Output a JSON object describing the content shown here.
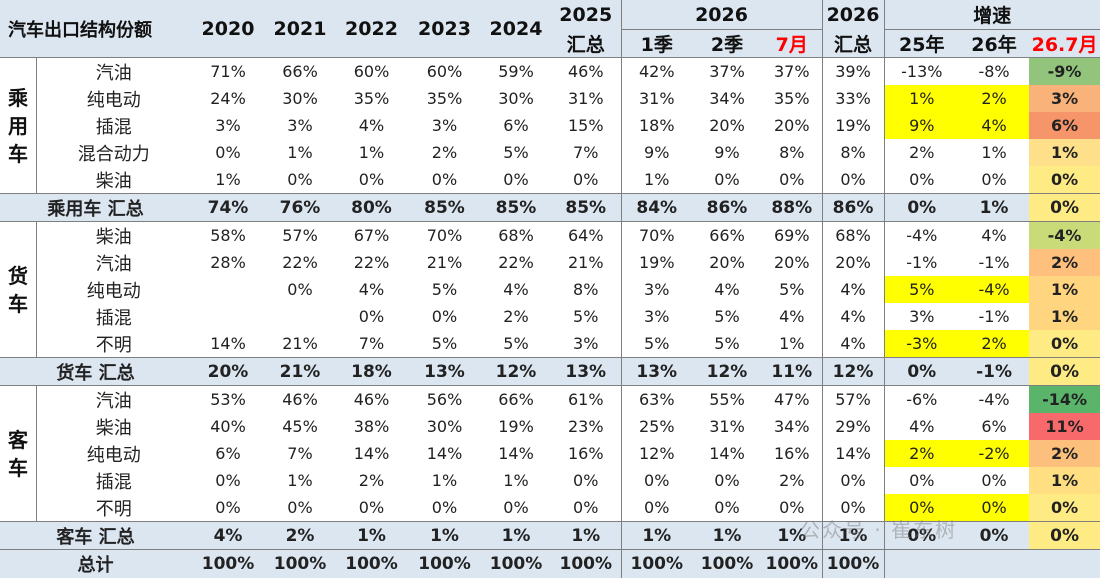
{
  "header": {
    "title": "汽车出口结构份额",
    "years": [
      "2020",
      "2021",
      "2022",
      "2023",
      "2024"
    ],
    "y2025": "2025",
    "y2025_sub": "汇总",
    "y2026": "2026",
    "q1": "1季",
    "q2": "2季",
    "jul": "7月",
    "y2026b": "2026",
    "y2026b_sub": "汇总",
    "growth": "增速",
    "g25": "25年",
    "g26": "26年",
    "g267": "26.7月"
  },
  "groups": [
    {
      "category": "乘用车",
      "rows": [
        {
          "label": "汽油",
          "values": [
            "71%",
            "66%",
            "60%",
            "60%",
            "59%",
            "46%",
            "42%",
            "37%",
            "37%",
            "39%"
          ],
          "g25": "-13%",
          "g26": "-8%",
          "g267": "-9%"
        },
        {
          "label": "纯电动",
          "values": [
            "24%",
            "30%",
            "35%",
            "35%",
            "30%",
            "31%",
            "31%",
            "34%",
            "35%",
            "33%"
          ],
          "g25": "1%",
          "g26": "2%",
          "g267": "3%"
        },
        {
          "label": "插混",
          "values": [
            "3%",
            "3%",
            "4%",
            "3%",
            "6%",
            "15%",
            "18%",
            "20%",
            "20%",
            "19%"
          ],
          "g25": "9%",
          "g26": "4%",
          "g267": "6%"
        },
        {
          "label": "混合动力",
          "values": [
            "0%",
            "1%",
            "1%",
            "2%",
            "5%",
            "7%",
            "9%",
            "9%",
            "8%",
            "8%"
          ],
          "g25": "2%",
          "g26": "1%",
          "g267": "1%"
        },
        {
          "label": "柴油",
          "values": [
            "1%",
            "0%",
            "0%",
            "0%",
            "0%",
            "0%",
            "1%",
            "0%",
            "0%",
            "0%"
          ],
          "g25": "0%",
          "g26": "0%",
          "g267": "0%"
        }
      ],
      "total": {
        "label": "乘用车 汇总",
        "values": [
          "74%",
          "76%",
          "80%",
          "85%",
          "85%",
          "85%",
          "84%",
          "86%",
          "88%",
          "86%"
        ],
        "g25": "0%",
        "g26": "1%",
        "g267": "0%"
      }
    },
    {
      "category": "货车",
      "rows": [
        {
          "label": "柴油",
          "values": [
            "58%",
            "57%",
            "67%",
            "70%",
            "68%",
            "64%",
            "70%",
            "66%",
            "69%",
            "68%"
          ],
          "g25": "-4%",
          "g26": "4%",
          "g267": "-4%"
        },
        {
          "label": "汽油",
          "values": [
            "28%",
            "22%",
            "22%",
            "21%",
            "22%",
            "21%",
            "19%",
            "20%",
            "20%",
            "20%"
          ],
          "g25": "-1%",
          "g26": "-1%",
          "g267": "2%"
        },
        {
          "label": "纯电动",
          "values": [
            "",
            "0%",
            "4%",
            "5%",
            "4%",
            "8%",
            "3%",
            "4%",
            "5%",
            "4%"
          ],
          "g25": "5%",
          "g26": "-4%",
          "g267": "1%"
        },
        {
          "label": "插混",
          "values": [
            "",
            "",
            "0%",
            "0%",
            "2%",
            "5%",
            "3%",
            "5%",
            "4%",
            "4%"
          ],
          "g25": "3%",
          "g26": "-1%",
          "g267": "1%"
        },
        {
          "label": "不明",
          "values": [
            "14%",
            "21%",
            "7%",
            "5%",
            "5%",
            "3%",
            "5%",
            "5%",
            "1%",
            "4%"
          ],
          "g25": "-3%",
          "g26": "2%",
          "g267": "0%"
        }
      ],
      "total": {
        "label": "货车 汇总",
        "values": [
          "20%",
          "21%",
          "18%",
          "13%",
          "12%",
          "13%",
          "13%",
          "12%",
          "11%",
          "12%"
        ],
        "g25": "0%",
        "g26": "-1%",
        "g267": "0%"
      }
    },
    {
      "category": "客车",
      "rows": [
        {
          "label": "汽油",
          "values": [
            "53%",
            "46%",
            "46%",
            "56%",
            "66%",
            "61%",
            "63%",
            "55%",
            "47%",
            "57%"
          ],
          "g25": "-6%",
          "g26": "-4%",
          "g267": "-14%"
        },
        {
          "label": "柴油",
          "values": [
            "40%",
            "45%",
            "38%",
            "30%",
            "19%",
            "23%",
            "25%",
            "31%",
            "34%",
            "29%"
          ],
          "g25": "4%",
          "g26": "6%",
          "g267": "11%"
        },
        {
          "label": "纯电动",
          "values": [
            "6%",
            "7%",
            "14%",
            "14%",
            "14%",
            "16%",
            "12%",
            "14%",
            "16%",
            "14%"
          ],
          "g25": "2%",
          "g26": "-2%",
          "g267": "2%"
        },
        {
          "label": "插混",
          "values": [
            "0%",
            "1%",
            "2%",
            "1%",
            "1%",
            "0%",
            "0%",
            "0%",
            "2%",
            "0%"
          ],
          "g25": "0%",
          "g26": "0%",
          "g267": "1%"
        },
        {
          "label": "不明",
          "values": [
            "0%",
            "0%",
            "0%",
            "0%",
            "0%",
            "0%",
            "0%",
            "0%",
            "0%",
            "0%"
          ],
          "g25": "0%",
          "g26": "0%",
          "g267": "0%"
        }
      ],
      "total": {
        "label": "客车 汇总",
        "values": [
          "4%",
          "2%",
          "1%",
          "1%",
          "1%",
          "1%",
          "1%",
          "1%",
          "1%",
          "1%"
        ],
        "g25": "0%",
        "g26": "0%",
        "g267": "0%"
      }
    }
  ],
  "grand_total": {
    "label": "总计",
    "values": [
      "100%",
      "100%",
      "100%",
      "100%",
      "100%",
      "100%",
      "100%",
      "100%",
      "100%",
      "100%"
    ]
  },
  "highlights": {
    "yellow": "#ffff00",
    "light_blue": "#dce6f1",
    "last_col_colors": [
      [
        "#92c47c",
        "#f8b27a",
        "#f6946a",
        "#ffe08a",
        "#ffeb84"
      ],
      [
        "#ffeb84"
      ],
      [
        "#c9db79",
        "#fec07c",
        "#ffd57f",
        "#ffd57f",
        "#ffeb84"
      ],
      [
        "#ffeb84"
      ],
      [
        "#5ab56a",
        "#f8696b",
        "#fcc07c",
        "#ffdf81",
        "#ffeb84"
      ],
      [
        "#ffeb84"
      ]
    ],
    "yellow_cells": [
      [
        [
          1,
          "g25"
        ],
        [
          1,
          "g26"
        ],
        [
          2,
          "g25"
        ],
        [
          2,
          "g26"
        ]
      ],
      [
        [
          2,
          "g25"
        ],
        [
          2,
          "g26"
        ],
        [
          4,
          "g25"
        ],
        [
          4,
          "g26"
        ]
      ],
      [
        [
          2,
          "g25"
        ],
        [
          2,
          "g26"
        ],
        [
          4,
          "g25"
        ],
        [
          4,
          "g26"
        ]
      ]
    ],
    "blue_total_cells": [
      "g25",
      "g26"
    ]
  },
  "watermark": "公众号 · 崔东树"
}
